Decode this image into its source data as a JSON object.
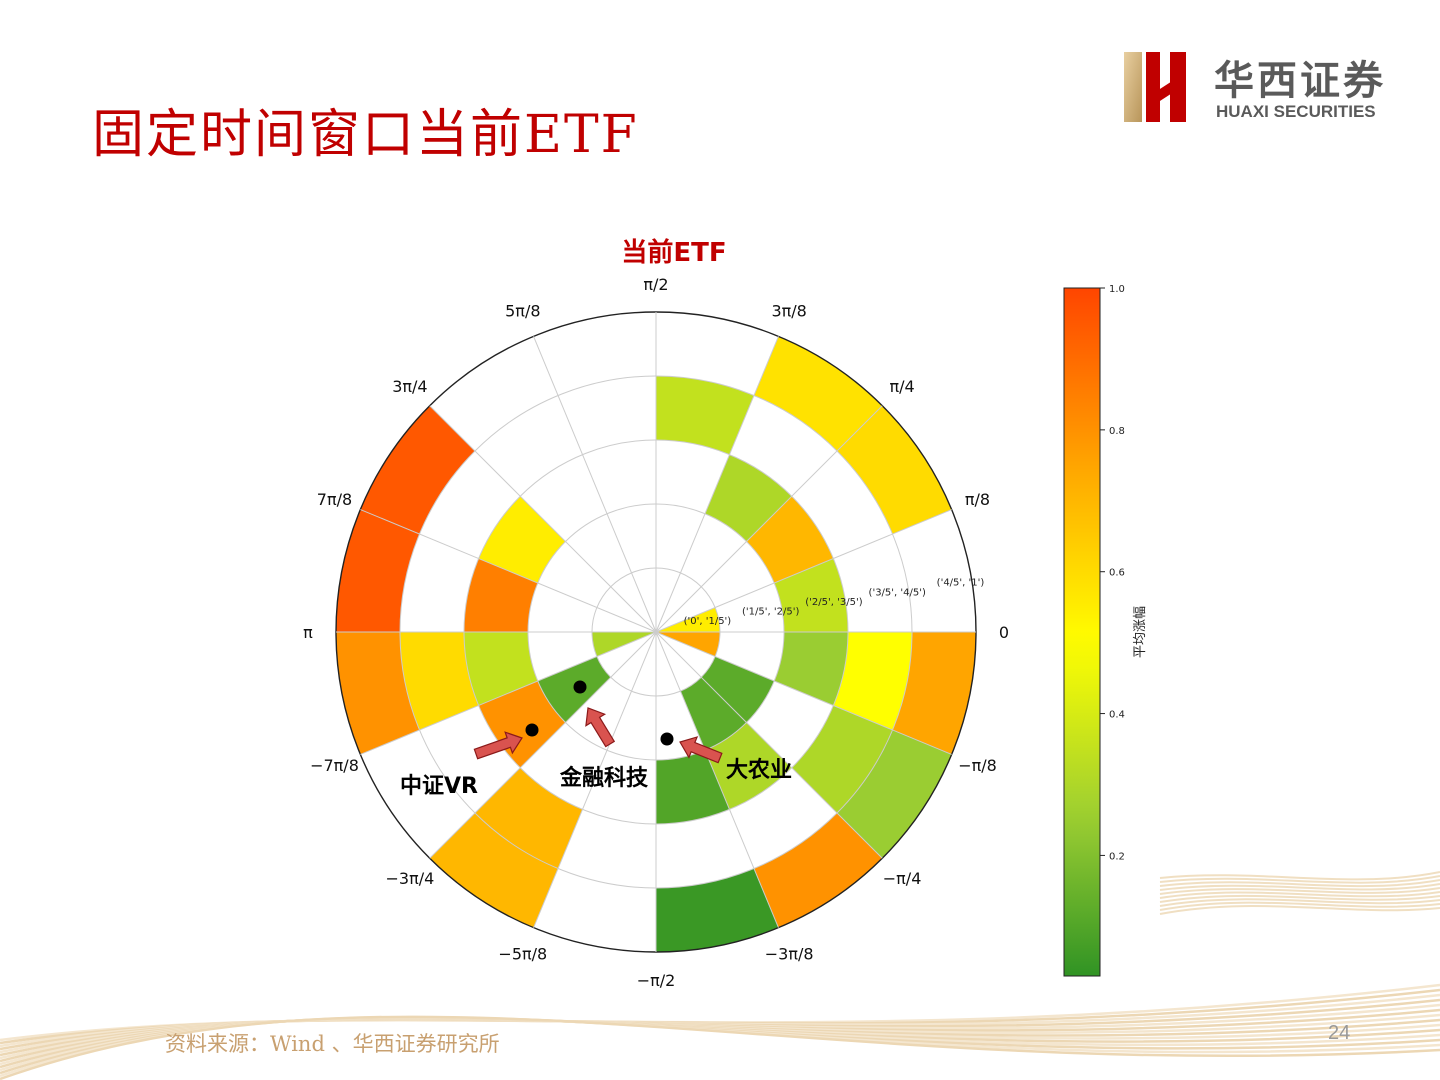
{
  "slide": {
    "title": "固定时间窗口当前ETF",
    "source": "资料来源：Wind 、华西证券研究所",
    "page_number": "24"
  },
  "logo": {
    "cn": "华西证券",
    "en": "HUAXI SECURITIES"
  },
  "colors": {
    "brand_red": "#c00000",
    "colormap": [
      "#228B22",
      "#9ACD32",
      "#FFFF00",
      "#FFA500",
      "#FF4500"
    ]
  },
  "annotations": [
    {
      "label": "中证VR"
    },
    {
      "label": "金融科技"
    },
    {
      "label": "大农业"
    }
  ],
  "chart_data": {
    "type": "polar_bar",
    "title": "当前ETF",
    "angle_tick_labels": [
      "0",
      "π/8",
      "π/4",
      "3π/8",
      "π/2",
      "5π/8",
      "3π/4",
      "7π/8",
      "π",
      "−7π/8",
      "−3π/4",
      "−5π/8",
      "−π/2",
      "−3π/8",
      "−π/4",
      "−π/8"
    ],
    "radial_tick_labels": [
      "('0', '1/5')",
      "('1/5', '2/5')",
      "('2/5', '3/5')",
      "('3/5', '4/5')",
      "('4/5', '1')"
    ],
    "sector_start_angles": [
      "0",
      "π/8",
      "π/4",
      "3π/8",
      "π/2",
      "5π/8",
      "3π/4",
      "7π/8",
      "−π/8",
      "−π/4",
      "−3π/8",
      "−π/2",
      "−5π/8",
      "−3π/4",
      "−7π/8",
      "−π"
    ],
    "values": [
      [
        0.55,
        null,
        0.35,
        null,
        null
      ],
      [
        null,
        null,
        0.7,
        null,
        0.6
      ],
      [
        null,
        null,
        0.3,
        null,
        0.58
      ],
      [
        null,
        null,
        null,
        0.35,
        null
      ],
      [
        null,
        null,
        null,
        null,
        null
      ],
      [
        null,
        null,
        null,
        null,
        null
      ],
      [
        null,
        null,
        0.55,
        null,
        0.95
      ],
      [
        null,
        null,
        0.85,
        null,
        0.95
      ],
      [
        0.75,
        null,
        0.25,
        0.5,
        0.75
      ],
      [
        null,
        0.12,
        null,
        0.3,
        0.25
      ],
      [
        null,
        0.12,
        0.3,
        null,
        0.8
      ],
      [
        null,
        null,
        0.1,
        null,
        0.05
      ],
      [
        null,
        null,
        null,
        null,
        null
      ],
      [
        null,
        null,
        null,
        0.7,
        0.7
      ],
      [
        null,
        0.12,
        0.8,
        null,
        null
      ],
      [
        0.3,
        null,
        0.35,
        0.6,
        0.8
      ]
    ],
    "colorbar": {
      "label": "平均涨幅",
      "range": [
        0.03,
        1.0
      ],
      "ticks": [
        "0.2",
        "0.4",
        "0.6",
        "0.8",
        "1.0"
      ]
    }
  }
}
